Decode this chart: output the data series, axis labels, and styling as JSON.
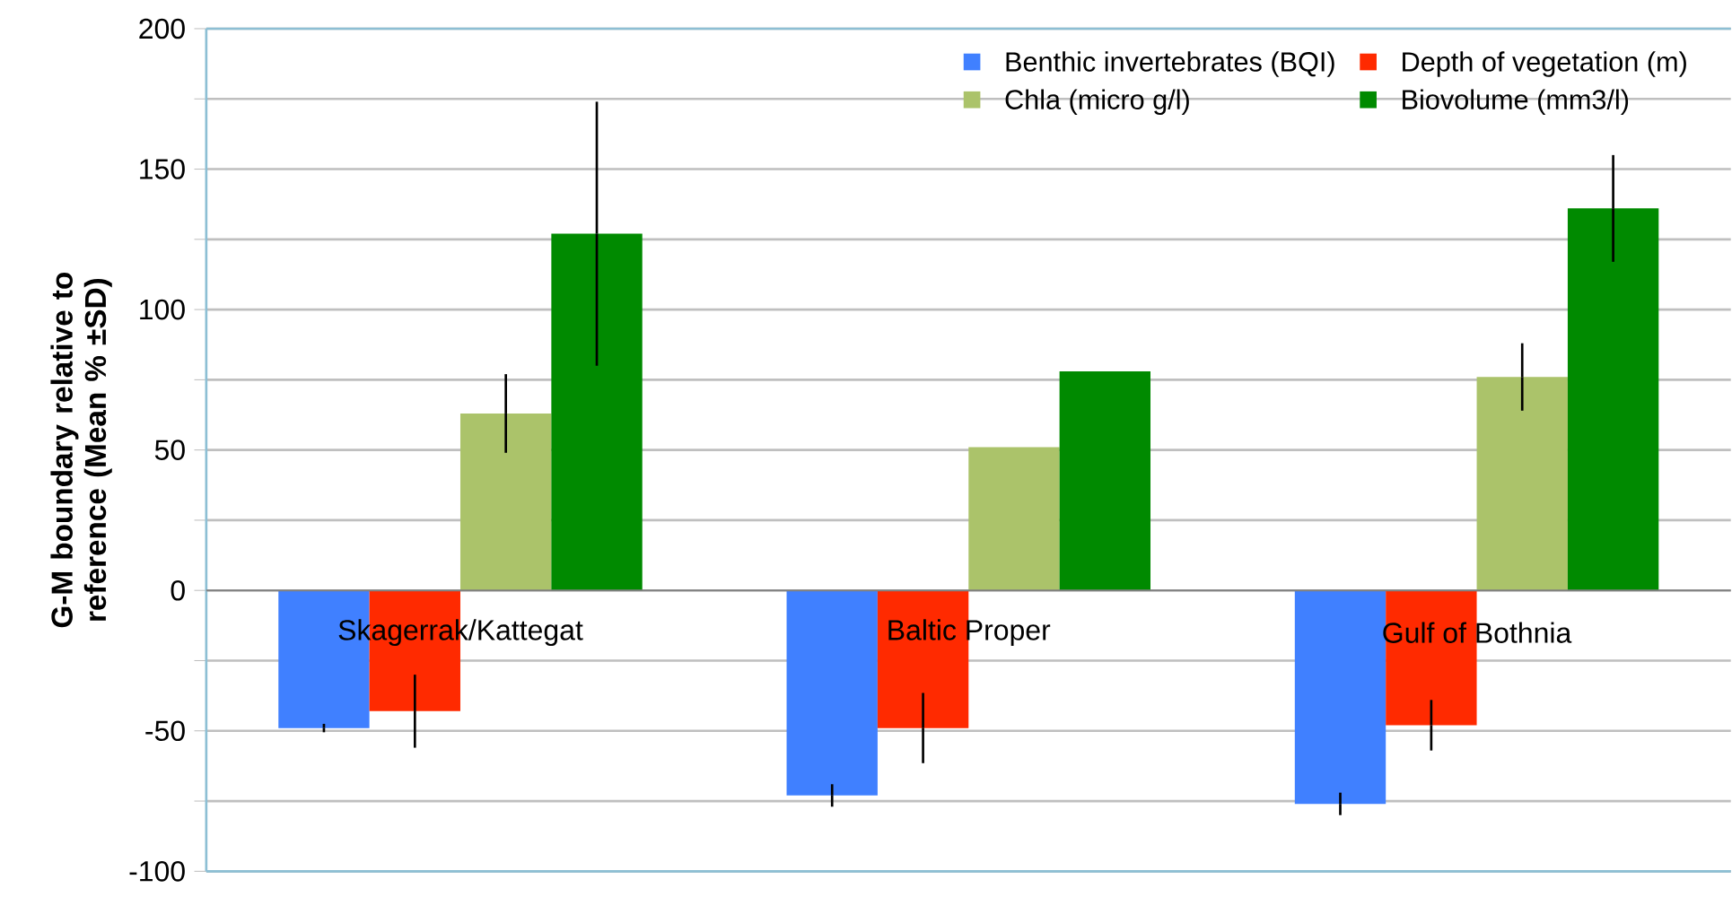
{
  "chart_data": {
    "type": "bar",
    "ylabel": "G-M boundary relative to reference  (Mean % ±SD)",
    "categories": [
      "Skagerrak/Kattegat",
      "Baltic Proper",
      "Gulf of Bothnia"
    ],
    "series": [
      {
        "name": "Benthic invertebrates (BQI)",
        "color": "#4080ff",
        "values": [
          -49,
          -73,
          -76
        ],
        "errors": [
          1.5,
          4,
          4
        ]
      },
      {
        "name": "Depth of vegetation (m)",
        "color": "#ff2a00",
        "values": [
          -43,
          -49,
          -48
        ],
        "errors": [
          13,
          12.5,
          9
        ]
      },
      {
        "name": "Chla (micro g/l)",
        "color": "#abc36a",
        "values": [
          63,
          51,
          76
        ],
        "errors": [
          14,
          null,
          12
        ]
      },
      {
        "name": "Biovolume (mm3/l)",
        "color": "#008a00",
        "values": [
          127,
          78,
          136
        ],
        "errors": [
          47,
          null,
          19
        ]
      }
    ],
    "ylim": [
      -100,
      200
    ],
    "yticks": [
      -100,
      {
        "value": -75,
        "label": null
      },
      -50,
      {
        "value": -25,
        "label": null
      },
      0,
      {
        "value": 25,
        "label": null
      },
      50,
      {
        "value": 75,
        "label": null
      },
      100,
      {
        "value": 125,
        "label": null
      },
      150,
      {
        "value": 175,
        "label": null
      },
      200
    ],
    "grid": "y",
    "legend": "top right"
  }
}
